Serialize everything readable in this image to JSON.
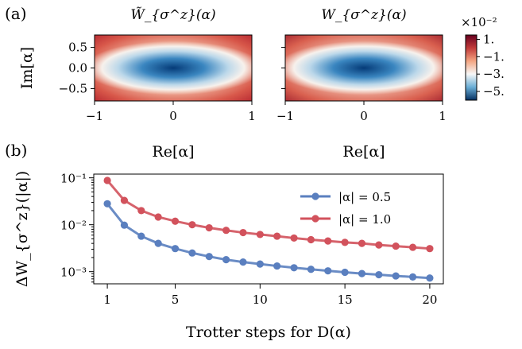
{
  "figure": {
    "panel_a_label": "(a)",
    "panel_b_label": "(b)"
  },
  "chart_data": [
    {
      "type": "heatmap",
      "panel": "(a) left",
      "title": "W̃_{σ^z}(α)",
      "xlabel": "Re[α]",
      "ylabel": "Im[α]",
      "xlim": [
        -1,
        1
      ],
      "ylim": [
        -0.8,
        0.8
      ],
      "xticks": [
        "−1",
        "0",
        "1"
      ],
      "yticks": [
        "0.5",
        "0.0",
        "−0.5"
      ],
      "description_values": {
        "center_min": -0.058,
        "edge_max": 0.012
      }
    },
    {
      "type": "heatmap",
      "panel": "(a) right",
      "title": "W_{σ^z}(α)",
      "xlabel": "Re[α]",
      "ylabel": "",
      "xlim": [
        -1,
        1
      ],
      "ylim": [
        -0.8,
        0.8
      ],
      "xticks": [
        "−1",
        "0",
        "1"
      ],
      "yticks": [],
      "description_values": {
        "center_min": -0.058,
        "edge_max": 0.013
      }
    },
    {
      "type": "colorbar",
      "multiplier": "×10⁻²",
      "ticks": [
        "1.",
        "−1.",
        "−3.",
        "−5."
      ],
      "tick_values": [
        1,
        -1,
        -3,
        -5
      ],
      "range": [
        -6,
        1.5
      ]
    },
    {
      "type": "line",
      "panel": "(b)",
      "xlabel": "Trotter steps for D(α)",
      "ylabel": "ΔW_{σ^z}(|α|)",
      "yscale": "log",
      "xlim": [
        0.2,
        20.8
      ],
      "ylim": [
        0.00055,
        0.12
      ],
      "xticks": [
        1,
        5,
        10,
        15,
        20
      ],
      "yticks": [
        "10⁻¹",
        "10⁻²",
        "10⁻³"
      ],
      "legend_position": "top-right",
      "x": [
        1,
        2,
        3,
        4,
        5,
        6,
        7,
        8,
        9,
        10,
        11,
        12,
        13,
        14,
        15,
        16,
        17,
        18,
        19,
        20
      ],
      "series": [
        {
          "name": "|α| = 0.5",
          "color": "#5a7fbf",
          "values": [
            0.028,
            0.0098,
            0.0057,
            0.004,
            0.0031,
            0.0025,
            0.0021,
            0.0018,
            0.0016,
            0.00145,
            0.00132,
            0.00121,
            0.00112,
            0.00104,
            0.00097,
            0.00091,
            0.00086,
            0.00081,
            0.00077,
            0.00073
          ]
        },
        {
          "name": "|α| = 1.0",
          "color": "#d2525c",
          "values": [
            0.088,
            0.033,
            0.02,
            0.0146,
            0.0119,
            0.01,
            0.0086,
            0.0076,
            0.0068,
            0.0062,
            0.0057,
            0.0052,
            0.0048,
            0.0045,
            0.0042,
            0.004,
            0.0037,
            0.0035,
            0.0033,
            0.0031
          ]
        }
      ]
    }
  ]
}
